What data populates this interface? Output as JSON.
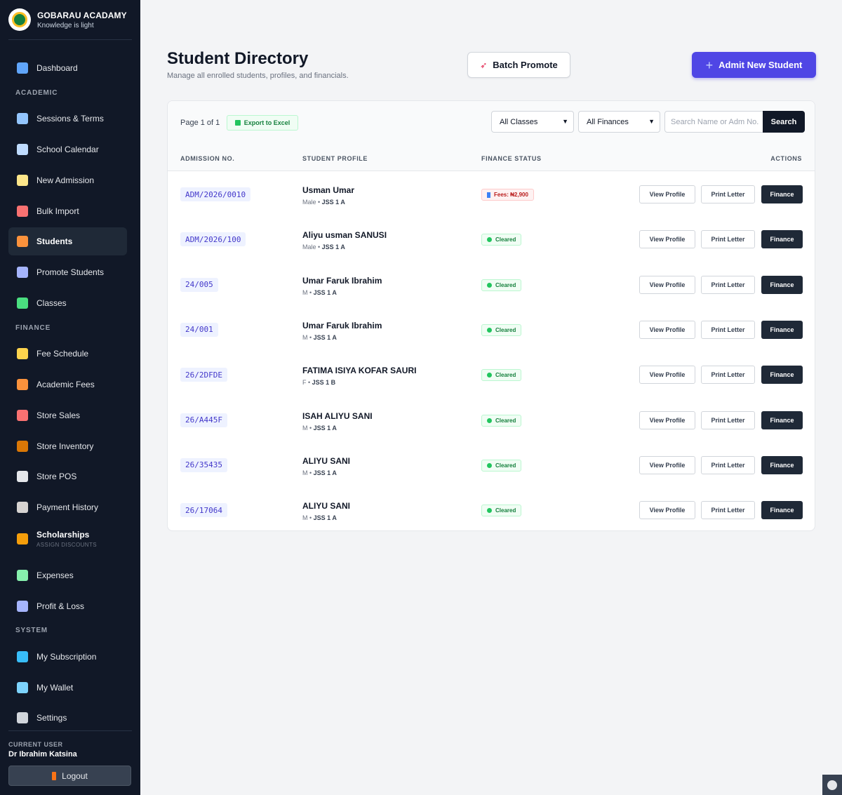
{
  "app": {
    "name": "GOBARAU ACADAMY",
    "motto": "Knowledge is light"
  },
  "sidebar": {
    "items": [
      {
        "label": "Dashboard",
        "icon": "dashboard-icon",
        "color": "#60a5fa"
      },
      {
        "label": "Sessions & Terms",
        "icon": "calendar-icon",
        "color": "#93c5fd"
      },
      {
        "label": "School Calendar",
        "icon": "calendar-grid-icon",
        "color": "#bfdbfe"
      },
      {
        "label": "New Admission",
        "icon": "memo-icon",
        "color": "#fde68a"
      },
      {
        "label": "Bulk Import",
        "icon": "rocket-icon",
        "color": "#f87171"
      },
      {
        "label": "Students",
        "icon": "student-icon",
        "color": "#fb923c"
      },
      {
        "label": "Promote Students",
        "icon": "chart-up-icon",
        "color": "#a5b4fc"
      },
      {
        "label": "Classes",
        "icon": "books-icon",
        "color": "#4ade80"
      },
      {
        "label": "Fee Schedule",
        "icon": "clipboard-icon",
        "color": "#fcd34d"
      },
      {
        "label": "Academic Fees",
        "icon": "graduation-icon",
        "color": "#fb923c"
      },
      {
        "label": "Store Sales",
        "icon": "store-icon",
        "color": "#f87171"
      },
      {
        "label": "Store Inventory",
        "icon": "box-icon",
        "color": "#d97706"
      },
      {
        "label": "Store POS",
        "icon": "pos-icon",
        "color": "#e5e7eb"
      },
      {
        "label": "Payment History",
        "icon": "bank-icon",
        "color": "#d6d3d1"
      },
      {
        "label": "Scholarships",
        "sub": "ASSIGN DISCOUNTS",
        "icon": "medal-icon",
        "color": "#f59e0b"
      },
      {
        "label": "Expenses",
        "icon": "money-wings-icon",
        "color": "#86efac"
      },
      {
        "label": "Profit & Loss",
        "icon": "chart-icon",
        "color": "#a5b4fc"
      },
      {
        "label": "My Subscription",
        "icon": "gem-icon",
        "color": "#38bdf8"
      },
      {
        "label": "My Wallet",
        "icon": "card-icon",
        "color": "#7dd3fc"
      },
      {
        "label": "Settings",
        "icon": "wrench-icon",
        "color": "#d1d5db"
      }
    ],
    "sections": {
      "academic": "ACADEMIC",
      "finance": "FINANCE",
      "system": "SYSTEM"
    },
    "current_user_label": "CURRENT USER",
    "current_user": "Dr Ibrahim Katsina",
    "logout_label": "Logout"
  },
  "header": {
    "title": "Student Directory",
    "subtitle": "Manage all enrolled students, profiles, and financials.",
    "batch_promote_label": "Batch Promote",
    "admit_label": "Admit New Student"
  },
  "toolbar": {
    "page_info": "Page 1 of 1",
    "export_label": "Export to Excel",
    "class_filter": "All Classes",
    "finance_filter": "All Finances",
    "search_placeholder": "Search Name or Adm No.",
    "search_label": "Search"
  },
  "table": {
    "headers": [
      "ADMISSION NO.",
      "STUDENT PROFILE",
      "FINANCE STATUS",
      "ACTIONS"
    ],
    "action_labels": {
      "view": "View Profile",
      "print": "Print Letter",
      "finance": "Finance"
    },
    "rows": [
      {
        "adm": "ADM/2026/0010",
        "name": "Usman Umar",
        "gender": "Male",
        "class": "JSS 1 A",
        "status": "Fees: ₦2,900",
        "status_type": "owing"
      },
      {
        "adm": "ADM/2026/100",
        "name": "Aliyu usman SANUSI",
        "gender": "Male",
        "class": "JSS 1 A",
        "status": "Cleared",
        "status_type": "cleared"
      },
      {
        "adm": "24/005",
        "name": "Umar Faruk Ibrahim",
        "gender": "M",
        "class": "JSS 1 A",
        "status": "Cleared",
        "status_type": "cleared"
      },
      {
        "adm": "24/001",
        "name": "Umar Faruk Ibrahim",
        "gender": "M",
        "class": "JSS 1 A",
        "status": "Cleared",
        "status_type": "cleared"
      },
      {
        "adm": "26/2DFDE",
        "name": "FATIMA ISIYA KOFAR SAURI",
        "gender": "F",
        "class": "JSS 1 B",
        "status": "Cleared",
        "status_type": "cleared"
      },
      {
        "adm": "26/A445F",
        "name": "ISAH ALIYU SANI",
        "gender": "M",
        "class": "JSS 1 A",
        "status": "Cleared",
        "status_type": "cleared"
      },
      {
        "adm": "26/35435",
        "name": "ALIYU SANI",
        "gender": "M",
        "class": "JSS 1 A",
        "status": "Cleared",
        "status_type": "cleared"
      },
      {
        "adm": "26/17064",
        "name": "ALIYU SANI",
        "gender": "M",
        "class": "JSS 1 A",
        "status": "Cleared",
        "status_type": "cleared"
      }
    ]
  },
  "colors": {
    "accent": "#4f46e5",
    "sidebar_bg": "#111827",
    "cleared": "#15803d",
    "owing": "#b91c1c"
  }
}
